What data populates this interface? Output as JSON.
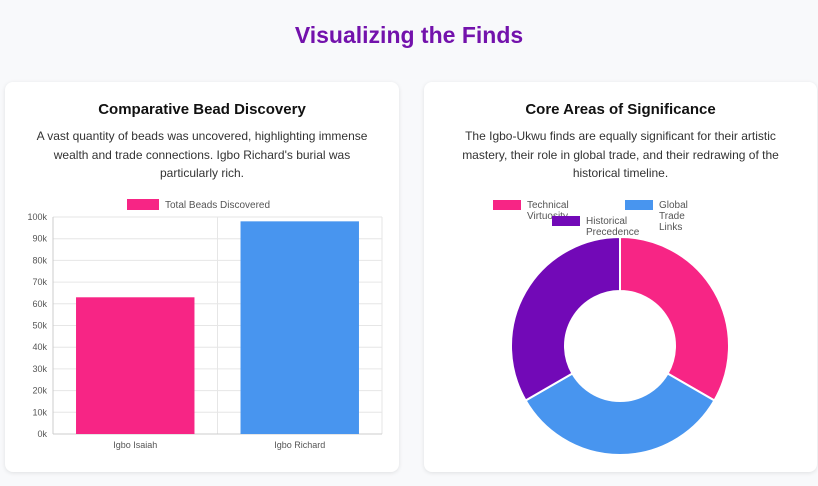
{
  "page": {
    "title": "Visualizing the Finds"
  },
  "bead_card": {
    "title": "Comparative Bead Discovery",
    "description": "A vast quantity of beads was uncovered, highlighting immense wealth and trade connections. Igbo Richard's burial was particularly rich."
  },
  "significance_card": {
    "title": "Core Areas of Significance",
    "description": "The Igbo-Ukwu finds are equally significant for their artistic mastery, their role in global trade, and their redrawing of the historical timeline."
  },
  "chart_data": [
    {
      "type": "bar",
      "categories": [
        "Igbo Isaiah",
        "Igbo Richard"
      ],
      "series": [
        {
          "name": "Total Beads Discovered",
          "values": [
            63000,
            98000
          ],
          "colors": [
            "#f72585",
            "#4895ef"
          ]
        }
      ],
      "ylim": [
        0,
        100000
      ],
      "yticks": [
        "0k",
        "10k",
        "20k",
        "30k",
        "40k",
        "50k",
        "60k",
        "70k",
        "80k",
        "90k",
        "100k"
      ],
      "legend": "top",
      "grid": true
    },
    {
      "type": "pie",
      "labels": [
        "Technical Virtuosity",
        "Global Trade Links",
        "Historical Precedence"
      ],
      "values": [
        1,
        1,
        1
      ],
      "colors": [
        "#f72585",
        "#4895ef",
        "#7209b7"
      ],
      "legend": "top"
    }
  ]
}
